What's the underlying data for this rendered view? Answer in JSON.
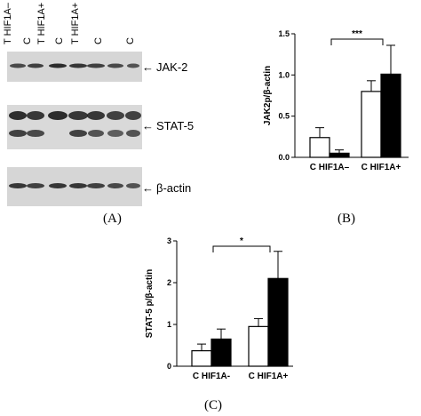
{
  "panel_a": {
    "label": "(A)",
    "lane_labels": [
      "T HIF1A–",
      "C",
      "T HIF1A+",
      "C",
      "T HIF1A+",
      "C",
      "C"
    ],
    "bands": [
      {
        "name": "JAK-2",
        "label": "JAK-2"
      },
      {
        "name": "STAT-5",
        "label": "STAT-5"
      },
      {
        "name": "beta-actin",
        "label": "β-actin"
      }
    ],
    "arrow_glyph": "←"
  },
  "chart_data": [
    {
      "panel": "(B)",
      "type": "bar",
      "ylabel": "JAK2p/β-actin",
      "ylim": [
        0,
        1.5
      ],
      "yticks": [
        "0.0",
        "0.5",
        "1.0",
        "1.5"
      ],
      "ytick_values": [
        0,
        0.5,
        1.0,
        1.5
      ],
      "group_labels": [
        "C HIF1A–",
        "C HIF1A+"
      ],
      "bars": [
        {
          "group": 0,
          "fill": "white",
          "value": 0.24,
          "error": 0.12
        },
        {
          "group": 0,
          "fill": "black",
          "value": 0.05,
          "error": 0.04
        },
        {
          "group": 1,
          "fill": "white",
          "value": 0.8,
          "error": 0.13
        },
        {
          "group": 1,
          "fill": "black",
          "value": 1.01,
          "error": 0.35
        }
      ],
      "significance": "***"
    },
    {
      "panel": "(C)",
      "type": "bar",
      "ylabel": "STAT-5 p/β-actin",
      "ylim": [
        0,
        3
      ],
      "yticks": [
        "0",
        "1",
        "2",
        "3"
      ],
      "ytick_values": [
        0,
        1,
        2,
        3
      ],
      "group_labels": [
        "C  HIF1A-",
        "C  HIF1A+"
      ],
      "bars": [
        {
          "group": 0,
          "fill": "white",
          "value": 0.37,
          "error": 0.16
        },
        {
          "group": 0,
          "fill": "black",
          "value": 0.65,
          "error": 0.24
        },
        {
          "group": 1,
          "fill": "white",
          "value": 0.95,
          "error": 0.19
        },
        {
          "group": 1,
          "fill": "black",
          "value": 2.1,
          "error": 0.65
        }
      ],
      "significance": "*"
    }
  ],
  "colors": {
    "bar_white": "#ffffff",
    "bar_black": "#000000",
    "blot_bg": "#d6d6d6",
    "band": "#1a1a1a"
  }
}
